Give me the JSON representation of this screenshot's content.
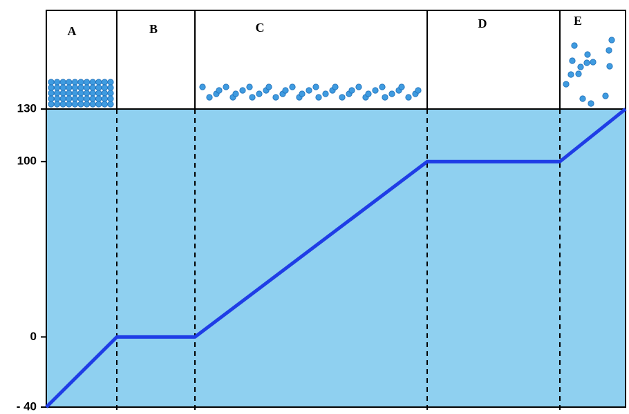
{
  "chart_data": {
    "type": "line",
    "regions": [
      "A",
      "B",
      "C",
      "D",
      "E"
    ],
    "values": [
      -40,
      0,
      0,
      100,
      100,
      130
    ],
    "color": "#1f3de6",
    "ylim": [
      -40,
      130
    ],
    "yticks": [
      {
        "value": -40,
        "label": "- 40"
      },
      0,
      100,
      130
    ]
  }
}
